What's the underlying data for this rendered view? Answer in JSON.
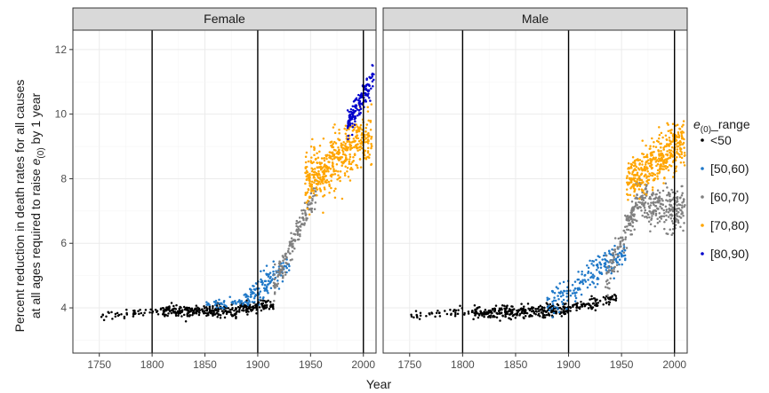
{
  "chart_data": {
    "type": "scatter",
    "title": "",
    "xlabel": "Year",
    "ylabel_lines": [
      "Percent reduction in death rates for all causes",
      "at all ages required to raise e(0) by 1 year"
    ],
    "ylabel_line2_prefix": "at all ages required to raise ",
    "ylabel_line2_sym": "e",
    "ylabel_line2_sub": "(0)",
    "ylabel_line2_suffix": " by 1 year",
    "xlim": [
      1725,
      2012
    ],
    "ylim": [
      2.6,
      12.6
    ],
    "xticks": [
      1750,
      1800,
      1850,
      1900,
      1950,
      2000
    ],
    "xtick_labels": [
      "1750",
      "1800",
      "1850",
      "1900",
      "1950",
      "2000"
    ],
    "yticks": [
      4,
      6,
      8,
      10,
      12
    ],
    "ytick_labels": [
      "4",
      "6",
      "8",
      "10",
      "12"
    ],
    "reference_lines_x": [
      1800,
      1900,
      2000
    ],
    "grid": true,
    "legend_position": "right",
    "legend": {
      "title_sym": "e",
      "title_sub": "(0)",
      "title_suffix": "_range",
      "entries": [
        {
          "label": "<50",
          "color": "#000000"
        },
        {
          "label": "[50,60)",
          "color": "#1f78c8"
        },
        {
          "label": "[60,70)",
          "color": "#808080"
        },
        {
          "label": "[70,80)",
          "color": "#ffa500"
        },
        {
          "label": "[80,90)",
          "color": "#0000cc"
        }
      ]
    },
    "panels": [
      {
        "name": "Female",
        "series": [
          {
            "range": "<50",
            "color": "#000000",
            "segments": [
              {
                "x0": 1751,
                "x1": 1810,
                "y_start": 3.75,
                "y_end": 3.95,
                "spread": 0.12,
                "count": 45
              },
              {
                "x0": 1810,
                "x1": 1880,
                "y_start": 3.9,
                "y_end": 3.9,
                "spread": 0.18,
                "count": 220
              },
              {
                "x0": 1880,
                "x1": 1915,
                "y_start": 3.95,
                "y_end": 4.1,
                "spread": 0.16,
                "count": 100
              }
            ]
          },
          {
            "range": "[50,60)",
            "color": "#1f78c8",
            "segments": [
              {
                "x0": 1850,
                "x1": 1885,
                "y_start": 4.1,
                "y_end": 4.2,
                "spread": 0.12,
                "count": 40
              },
              {
                "x0": 1885,
                "x1": 1930,
                "y_start": 4.2,
                "y_end": 5.3,
                "spread": 0.35,
                "count": 130
              }
            ]
          },
          {
            "range": "[60,70)",
            "color": "#808080",
            "segments": [
              {
                "x0": 1915,
                "x1": 1955,
                "y_start": 4.7,
                "y_end": 7.6,
                "spread": 0.4,
                "count": 170
              }
            ]
          },
          {
            "range": "[70,80)",
            "color": "#ffa500",
            "segments": [
              {
                "x0": 1945,
                "x1": 2008,
                "y_start": 7.9,
                "y_end": 9.4,
                "spread": 0.75,
                "count": 480
              }
            ]
          },
          {
            "range": "[80,90)",
            "color": "#0000cc",
            "segments": [
              {
                "x0": 1985,
                "x1": 2010,
                "y_start": 9.7,
                "y_end": 11.1,
                "spread": 0.4,
                "count": 150
              }
            ]
          }
        ]
      },
      {
        "name": "Male",
        "series": [
          {
            "range": "<50",
            "color": "#000000",
            "segments": [
              {
                "x0": 1751,
                "x1": 1810,
                "y_start": 3.75,
                "y_end": 3.9,
                "spread": 0.12,
                "count": 45
              },
              {
                "x0": 1810,
                "x1": 1900,
                "y_start": 3.85,
                "y_end": 3.95,
                "spread": 0.18,
                "count": 300
              },
              {
                "x0": 1900,
                "x1": 1945,
                "y_start": 4.0,
                "y_end": 4.3,
                "spread": 0.15,
                "count": 90
              }
            ]
          },
          {
            "range": "[50,60)",
            "color": "#1f78c8",
            "segments": [
              {
                "x0": 1880,
                "x1": 1955,
                "y_start": 4.05,
                "y_end": 5.8,
                "spread": 0.4,
                "count": 190
              }
            ]
          },
          {
            "range": "[60,70)",
            "color": "#808080",
            "segments": [
              {
                "x0": 1935,
                "x1": 1965,
                "y_start": 4.8,
                "y_end": 7.3,
                "spread": 0.45,
                "count": 130
              },
              {
                "x0": 1965,
                "x1": 2010,
                "y_start": 7.3,
                "y_end": 7.0,
                "spread": 0.55,
                "count": 260
              }
            ]
          },
          {
            "range": "[70,80)",
            "color": "#ffa500",
            "segments": [
              {
                "x0": 1955,
                "x1": 2010,
                "y_start": 7.9,
                "y_end": 9.2,
                "spread": 0.65,
                "count": 420
              }
            ]
          }
        ]
      }
    ]
  }
}
